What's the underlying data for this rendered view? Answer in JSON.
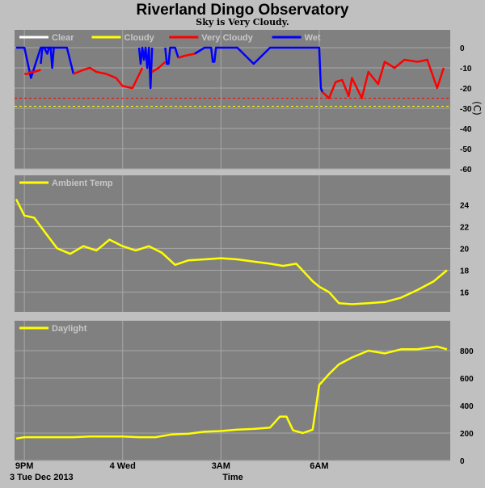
{
  "title": "Riverland Dingo Observatory",
  "subtitle": "Sky is Very Cloudy.",
  "colors": {
    "background": "#c0c0c0",
    "plot_bg": "#808080",
    "grid": "#a8a8a8",
    "clear": "#ffffff",
    "cloudy": "#ffff00",
    "very_cloudy": "#ff0000",
    "wet": "#0000ff",
    "ambient": "#ffff00",
    "daylight": "#ffff00"
  },
  "x_axis": {
    "label": "Time",
    "date_label": "3 Tue Dec 2013",
    "ticks": [
      "9PM",
      "4 Wed",
      "3AM",
      "6AM"
    ],
    "tick_hours": [
      21,
      24,
      27,
      30
    ],
    "range_hours": [
      20.7,
      34.0
    ]
  },
  "chart_data": [
    {
      "type": "line",
      "name": "sky",
      "ylabel": "(C)",
      "ylim": [
        -60,
        0
      ],
      "yticks": [
        0,
        -10,
        -20,
        -30,
        -40,
        -50,
        -60
      ],
      "legend": [
        "Clear",
        "Cloudy",
        "Very Cloudy",
        "Wet"
      ],
      "thresholds": [
        {
          "series": "Very Cloudy",
          "value": -25
        },
        {
          "series": "Cloudy",
          "value": -29
        }
      ],
      "series": [
        {
          "name": "Wet",
          "x": [
            20.75,
            21.0,
            21.2,
            21.5,
            21.9,
            22.3,
            22.5
          ],
          "y": [
            0,
            0,
            -15,
            0,
            0,
            0,
            -13
          ]
        },
        {
          "name": "Very Cloudy",
          "x": [
            21.0,
            21.1,
            21.2,
            21.3,
            21.5
          ],
          "y": [
            -13,
            -13,
            -12,
            -12,
            -11
          ]
        },
        {
          "name": "Wet",
          "x": [
            21.5,
            21.55,
            21.6,
            21.7,
            21.75,
            21.8,
            21.85,
            21.9
          ],
          "y": [
            -8,
            0,
            0,
            -3,
            0,
            0,
            -10,
            0
          ]
        },
        {
          "name": "Very Cloudy",
          "x": [
            22.5,
            22.8,
            23.0,
            23.2,
            23.5,
            23.8,
            24.0,
            24.3,
            24.6
          ],
          "y": [
            -13,
            -11,
            -10,
            -12,
            -13,
            -15,
            -19,
            -20,
            -10
          ]
        },
        {
          "name": "Wet",
          "x": [
            24.5,
            24.55,
            24.6,
            24.65,
            24.7,
            24.75,
            24.8,
            24.85,
            24.9
          ],
          "y": [
            0,
            -8,
            0,
            -6,
            0,
            -10,
            0,
            -20,
            0
          ]
        },
        {
          "name": "Very Cloudy",
          "x": [
            24.9,
            25.1,
            25.3
          ],
          "y": [
            -12,
            -10,
            -7
          ]
        },
        {
          "name": "Wet",
          "x": [
            25.3,
            25.35,
            25.4,
            25.45,
            25.5,
            25.6,
            25.7
          ],
          "y": [
            0,
            -8,
            -8,
            0,
            0,
            0,
            -5
          ]
        },
        {
          "name": "Very Cloudy",
          "x": [
            25.7,
            25.9,
            26.2
          ],
          "y": [
            -5,
            -4,
            -3
          ]
        },
        {
          "name": "Wet",
          "x": [
            26.2,
            26.5,
            26.7,
            26.75,
            26.8,
            26.85,
            27.0,
            27.5,
            28.0,
            28.5,
            29.0,
            29.5,
            29.8,
            30.0,
            30.05,
            30.1
          ],
          "y": [
            -3,
            0,
            0,
            -7,
            -7,
            0,
            0,
            0,
            -8,
            0,
            0,
            0,
            0,
            0,
            -20,
            -22
          ]
        },
        {
          "name": "Very Cloudy",
          "x": [
            30.1,
            30.3,
            30.5,
            30.7,
            30.9,
            31.0,
            31.3,
            31.5,
            31.8,
            32.0,
            32.3,
            32.6,
            33.0,
            33.3,
            33.6,
            33.8
          ],
          "y": [
            -22,
            -25,
            -17,
            -16,
            -24,
            -15,
            -25,
            -12,
            -18,
            -7,
            -10,
            -6,
            -7,
            -6,
            -20,
            -10
          ]
        }
      ]
    },
    {
      "type": "line",
      "name": "ambient",
      "ylim": [
        14.2,
        25.2
      ],
      "yticks": [
        24,
        22,
        20,
        18,
        16
      ],
      "legend": [
        "Ambient Temp"
      ],
      "series": [
        {
          "name": "Ambient Temp",
          "x": [
            20.75,
            21.0,
            21.3,
            21.7,
            22.0,
            22.4,
            22.8,
            23.2,
            23.6,
            24.0,
            24.4,
            24.8,
            25.2,
            25.6,
            26.0,
            26.5,
            27.0,
            27.5,
            28.0,
            28.5,
            28.9,
            29.3,
            29.8,
            30.0,
            30.3,
            30.6,
            31.0,
            31.5,
            32.0,
            32.5,
            33.0,
            33.5,
            33.9
          ],
          "y": [
            24.5,
            23.0,
            22.8,
            21.2,
            20.0,
            19.5,
            20.2,
            19.8,
            20.8,
            20.2,
            19.8,
            20.2,
            19.6,
            18.5,
            18.9,
            19.0,
            19.1,
            19.0,
            18.8,
            18.6,
            18.4,
            18.6,
            17.0,
            16.5,
            16.0,
            15.0,
            14.9,
            15.0,
            15.1,
            15.5,
            16.2,
            17.0,
            18.0
          ]
        }
      ]
    },
    {
      "type": "line",
      "name": "daylight",
      "ylim": [
        0,
        900
      ],
      "yticks": [
        800,
        600,
        400,
        200,
        0
      ],
      "legend": [
        "Daylight"
      ],
      "series": [
        {
          "name": "Daylight",
          "x": [
            20.75,
            21.0,
            21.5,
            22.0,
            22.5,
            23.0,
            23.5,
            24.0,
            24.5,
            25.0,
            25.5,
            26.0,
            26.5,
            27.0,
            27.5,
            28.0,
            28.5,
            28.8,
            29.0,
            29.2,
            29.5,
            29.8,
            30.0,
            30.3,
            30.6,
            31.0,
            31.5,
            32.0,
            32.5,
            33.0,
            33.3,
            33.6,
            33.9
          ],
          "y": [
            160,
            170,
            170,
            170,
            170,
            175,
            175,
            175,
            170,
            170,
            190,
            195,
            210,
            215,
            225,
            230,
            240,
            320,
            320,
            220,
            200,
            225,
            550,
            630,
            700,
            750,
            800,
            780,
            810,
            810,
            820,
            830,
            810
          ]
        }
      ]
    }
  ]
}
